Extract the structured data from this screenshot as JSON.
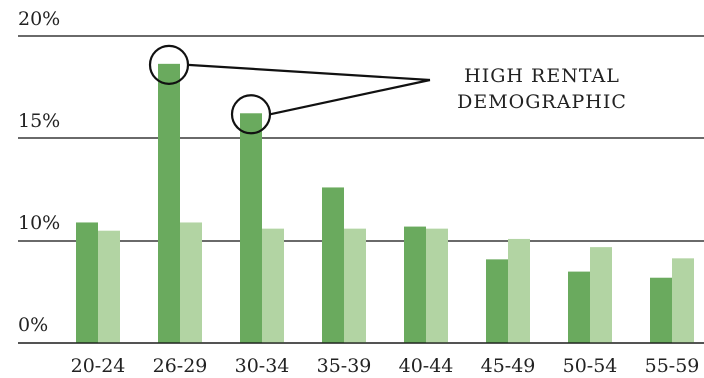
{
  "chart_data": {
    "type": "bar",
    "categories": [
      "20-24",
      "26-29",
      "30-34",
      "35-39",
      "40-44",
      "45-49",
      "50-54",
      "55-59"
    ],
    "series": [
      {
        "values": [
          10.9,
          18.6,
          16.2,
          12.6,
          10.7,
          8.2,
          7.0,
          6.4
        ]
      },
      {
        "values": [
          10.5,
          10.9,
          10.6,
          10.6,
          10.6,
          10.1,
          9.4,
          8.3
        ]
      }
    ],
    "y_tick_labels": [
      "0%",
      "10%",
      "15%",
      "20%"
    ],
    "ylim": [
      0,
      20
    ],
    "grid": true,
    "annotations": [
      {
        "text_lines": [
          "HIGH RENTAL",
          "DEMOGRAPHIC"
        ],
        "targets": [
          "26-29",
          "30-34"
        ]
      }
    ],
    "colors": {
      "series_1": "#6aaa5e",
      "series_2": "#b2d4a3",
      "gridline": "#111111",
      "text": "#222222"
    }
  }
}
